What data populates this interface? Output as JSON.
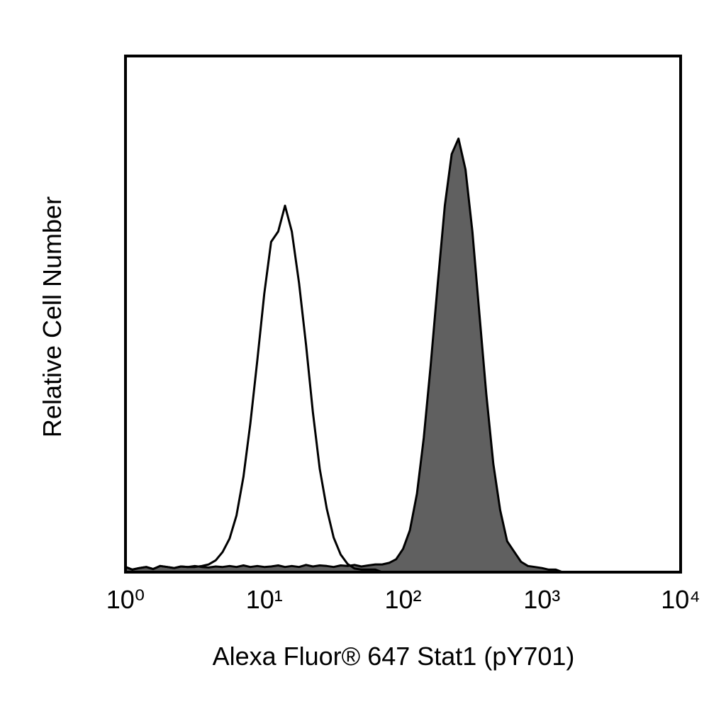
{
  "chart_data": {
    "type": "histogram",
    "x_label": "Alexa Fluor® 647 Stat1 (pY701)",
    "y_label": "Relative Cell Number",
    "log_x": true,
    "xlim": [
      1,
      10000
    ],
    "ylim": [
      0,
      100
    ],
    "xticks": [
      {
        "value": 1,
        "label": "10⁰"
      },
      {
        "value": 10,
        "label": "10¹"
      },
      {
        "value": 100,
        "label": "10²"
      },
      {
        "value": 1000,
        "label": "10³"
      },
      {
        "value": 10000,
        "label": "10⁴"
      }
    ],
    "x": [
      1,
      1.12,
      1.26,
      1.41,
      1.58,
      1.78,
      2.0,
      2.24,
      2.51,
      2.82,
      3.16,
      3.55,
      3.98,
      4.47,
      5.01,
      5.62,
      6.31,
      7.08,
      7.94,
      8.91,
      10,
      11.2,
      12.6,
      14.1,
      15.8,
      17.8,
      20,
      22.4,
      25.1,
      28.2,
      31.6,
      35.5,
      39.8,
      44.7,
      50.1,
      56.2,
      63.1,
      70.8,
      79.4,
      89.1,
      100,
      112,
      126,
      141,
      158,
      178,
      200,
      224,
      251,
      282,
      316,
      355,
      398,
      447,
      501,
      562,
      631,
      708,
      794,
      891,
      1000,
      1120,
      1260,
      1410,
      1580
    ],
    "series": [
      {
        "color": "#606060",
        "filled": true,
        "values": [
          1,
          0.5,
          0.8,
          1,
          0.6,
          1.2,
          1,
          0.8,
          1.1,
          1,
          1.2,
          1,
          0.9,
          1.1,
          1,
          1.2,
          1,
          1.3,
          1,
          1.2,
          1,
          1.1,
          1.3,
          1,
          1.2,
          1,
          1.4,
          1.1,
          1.3,
          1.2,
          1,
          1.3,
          1.2,
          1.4,
          1.1,
          1.3,
          1.5,
          1.5,
          1.8,
          2.5,
          4.5,
          8.1,
          15.2,
          26,
          40,
          56,
          71,
          81,
          84,
          78,
          66,
          50,
          34.5,
          21,
          12,
          6,
          4,
          2,
          1.2,
          1,
          0.8,
          0.5,
          0.5,
          0,
          0
        ]
      },
      {
        "color": "#000000",
        "filled": false,
        "values": [
          1,
          0.5,
          0.8,
          1,
          0.6,
          1.2,
          1,
          0.8,
          1.1,
          1,
          1,
          1.2,
          1.5,
          2.3,
          3.9,
          6.5,
          11,
          18.5,
          28.8,
          41,
          54,
          64,
          66,
          71,
          66,
          56,
          44,
          31,
          20,
          12.3,
          6.7,
          3.4,
          1.6,
          0.7,
          0.5,
          0.5,
          0.5,
          0,
          0,
          0,
          0,
          0,
          0,
          0,
          0,
          0,
          0,
          0,
          0,
          0,
          0,
          0,
          0,
          0,
          0,
          0,
          0,
          0,
          0,
          0,
          0,
          0,
          0,
          0,
          0
        ]
      }
    ]
  }
}
